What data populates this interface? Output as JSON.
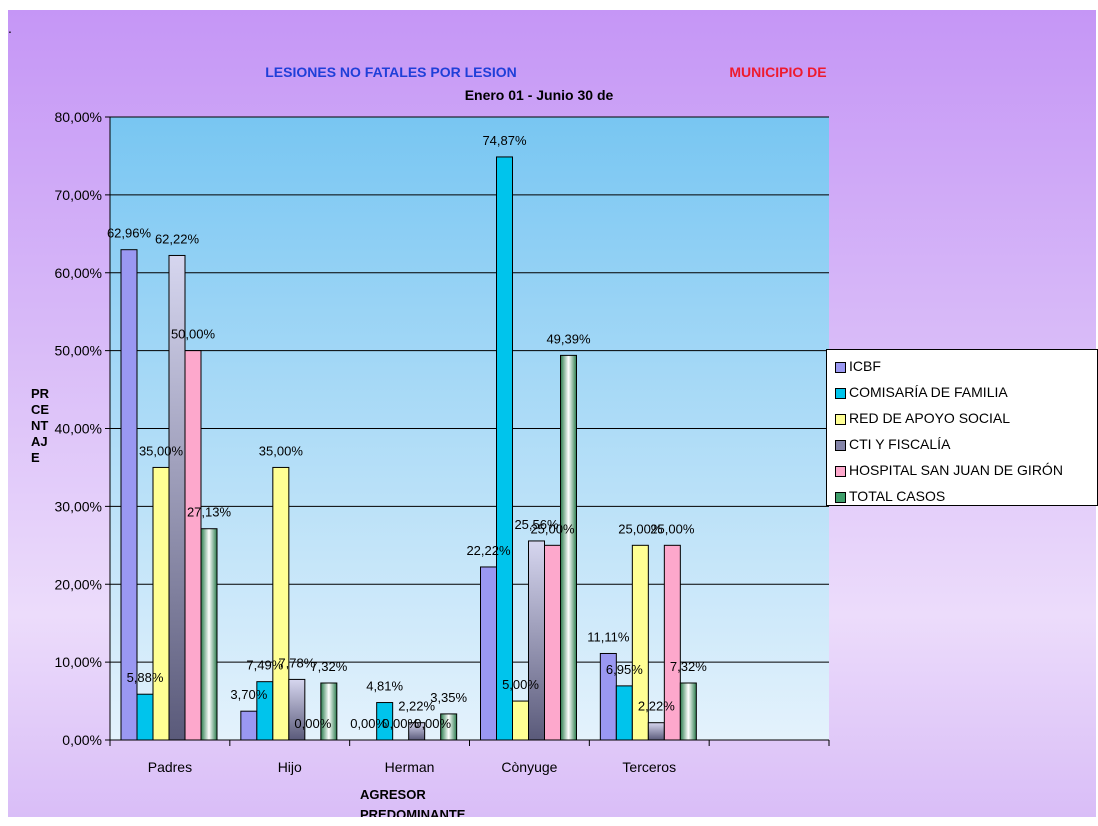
{
  "chart_data": {
    "type": "bar",
    "title": "LESIONES NO FATALES POR LESION",
    "title_right": "MUNICIPIO DE",
    "subtitle": "Enero 01 - Junio 30 de",
    "ylabel": "PR CE NT AJ E",
    "xlabel": "AGRESOR PREDOMINANTE",
    "categories": [
      "Padres",
      "Hijo",
      "Herman",
      "Cònyuge",
      "Terceros",
      ""
    ],
    "ylim": [
      0,
      0.8
    ],
    "yticks": [
      "0,00%",
      "10,00%",
      "20,00%",
      "30,00%",
      "40,00%",
      "50,00%",
      "60,00%",
      "70,00%",
      "80,00%"
    ],
    "grid": true,
    "legend_position": "right",
    "series": [
      {
        "name": "ICBF",
        "color": "#9a98f2",
        "values": [
          0.6296,
          0.037,
          0.0,
          0.2222,
          0.1111,
          null
        ],
        "labels": [
          "62,96%",
          "3,70%",
          "0,00%",
          "22,22%",
          "11,11%",
          ""
        ]
      },
      {
        "name": "COMISARÍA DE FAMILIA",
        "color": "#00c4ec",
        "values": [
          0.0588,
          0.0749,
          0.0481,
          0.7487,
          0.0695,
          null
        ],
        "labels": [
          "5,88%",
          "7,49%",
          "4,81%",
          "74,87%",
          "6,95%",
          ""
        ]
      },
      {
        "name": "RED DE APOYO SOCIAL",
        "color": "#ffff94",
        "values": [
          0.35,
          0.35,
          0.0,
          0.05,
          0.25,
          null
        ],
        "labels": [
          "35,00%",
          "35,00%",
          "0,00%",
          "5,00%",
          "25,00%",
          ""
        ]
      },
      {
        "name": "CTI Y FISCALÍA",
        "color": "#8484a8",
        "values": [
          0.6222,
          0.0778,
          0.0222,
          0.2556,
          0.0222,
          null
        ],
        "labels": [
          "62,22%",
          "7,78%",
          "2,22%",
          "25,56%",
          "2,22%",
          ""
        ]
      },
      {
        "name": "HOSPITAL SAN JUAN DE GIRÓN",
        "color": "#fda8cc",
        "values": [
          0.5,
          0.0,
          0.0,
          0.25,
          0.25,
          null
        ],
        "labels": [
          "50,00%",
          "0,00%",
          "0,00%",
          "25,00%",
          "25,00%",
          ""
        ]
      },
      {
        "name": "TOTAL CASOS",
        "color": "#3e9e6a",
        "values": [
          0.2713,
          0.0732,
          0.0335,
          0.4939,
          0.0732,
          null
        ],
        "labels": [
          "27,13%",
          "7,32%",
          "3,35%",
          "49,39%",
          "7,32%",
          ""
        ]
      }
    ]
  },
  "colors": {
    "plot_top": "#78c6f2",
    "plot_bottom": "#e4f2fc",
    "title_blue": "#1f3fd8",
    "title_red": "#ee1b2e"
  },
  "page": {
    "dot": "."
  }
}
